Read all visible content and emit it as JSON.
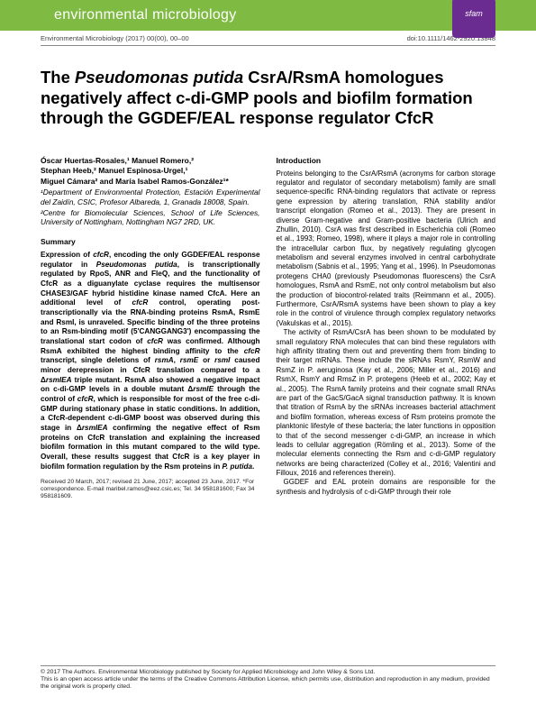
{
  "banner": {
    "journal_brand": "environmental microbiology",
    "badge": "sfam"
  },
  "meta": {
    "citation": "Environmental Microbiology (2017) 00(00), 00–00",
    "doi": "doi:10.1111/1462-2920.13848"
  },
  "title": {
    "pre_italic": "The ",
    "italic1": "Pseudomonas putida",
    "mid": " CsrA/RsmA homologues negatively affect c-di-GMP pools and biofilm formation through the GGDEF/EAL response regulator CfcR"
  },
  "authors": {
    "line1": "Óscar Huertas-Rosales,¹ Manuel Romero,²",
    "line2": "Stephan Heeb,² Manuel Espinosa-Urgel,¹",
    "line3": "Miguel Cámara² and María Isabel Ramos-González¹*"
  },
  "affiliations": {
    "a1": "¹Department of Environmental Protection, Estación Experimental del Zaidín, CSIC, Profesor Albareda, 1, Granada 18008, Spain.",
    "a2": "²Centre for Biomolecular Sciences, School of Life Sciences, University of Nottingham, Nottingham NG7 2RD, UK."
  },
  "summary": {
    "head": "Summary",
    "body_parts": [
      "Expression of ",
      "cfcR",
      ", encoding the only GGDEF/EAL response regulator in ",
      "Pseudomonas putida",
      ", is transcriptionally regulated by RpoS, ANR and FleQ, and the functionality of CfcR as a diguanylate cyclase requires the multisensor CHASE3/GAF hybrid histidine kinase named CfcA. Here an additional level of ",
      "cfcR",
      " control, operating post-transcriptionally via the RNA-binding proteins RsmA, RsmE and RsmI, is unraveled. Specific binding of the three proteins to an Rsm-binding motif (5'CANGGANG3') encompassing the translational start codon of ",
      "cfcR",
      " was confirmed. Although RsmA exhibited the highest binding affinity to the ",
      "cfcR",
      " transcript, single deletions of ",
      "rsmA",
      ", ",
      "rsmE",
      " or ",
      "rsmI",
      " caused minor derepression in CfcR translation compared to a Δ",
      "rsmIEA",
      " triple mutant. RsmA also showed a negative impact on c-di-GMP levels in a double mutant Δ",
      "rsmIE",
      " through the control of ",
      "cfcR",
      ", which is responsible for most of the free c-di-GMP during stationary phase in static conditions. In addition, a CfcR-dependent c-di-GMP boost was observed during this stage in Δ",
      "rsmIEA",
      " confirming the negative effect of Rsm proteins on CfcR translation and explaining the increased biofilm formation in this mutant compared to the wild type. Overall, these results suggest that CfcR is a key player in biofilm formation regulation by the Rsm proteins in ",
      "P. putida",
      "."
    ]
  },
  "intro": {
    "head": "Introduction",
    "p1": "Proteins belonging to the CsrA/RsmA (acronyms for carbon storage regulator and regulator of secondary metabolism) family are small sequence-specific RNA-binding regulators that activate or repress gene expression by altering translation, RNA stability and/or transcript elongation (Romeo et al., 2013). They are present in diverse Gram-negative and Gram-positive bacteria (Ulrich and Zhullin, 2010). CsrA was first described in Escherichia coli (Romeo et al., 1993; Romeo, 1998), where it plays a major role in controlling the intracellular carbon flux, by negatively regulating glycogen metabolism and several enzymes involved in central carbohydrate metabolism (Sabnis et al., 1995; Yang et al., 1996). In Pseudomonas protegens CHA0 (previously Pseudomonas fluorescens) the CsrA homologues, RsmA and RsmE, not only control metabolism but also the production of biocontrol-related traits (Reimmann et al., 2005). Furthermore, CsrA/RsmA systems have been shown to play a key role in the control of virulence through complex regulatory networks (Vakulskas et al., 2015).",
    "p2": "The activity of RsmA/CsrA has been shown to be modulated by small regulatory RNA molecules that can bind these regulators with high affinity titrating them out and preventing them from binding to their target mRNAs. These include the sRNAs RsmY, RsmW and RsmZ in P. aeruginosa (Kay et al., 2006; Miller et al., 2016) and RsmX, RsmY and RmsZ in P. protegens (Heeb et al., 2002; Kay et al., 2005). The RsmA family proteins and their cognate small RNAs are part of the GacS/GacA signal transduction pathway. It is known that titration of RsmA by the sRNAs increases bacterial attachment and biofilm formation, whereas excess of Rsm proteins promote the planktonic lifestyle of these bacteria; the later functions in opposition to that of the second messenger c-di-GMP, an increase in which leads to cellular aggregation (Römling et al., 2013). Some of the molecular elements connecting the Rsm and c-di-GMP regulatory networks are being characterized (Colley et al., 2016; Valentini and Filloux, 2016 and references therein).",
    "p3": "GGDEF and EAL protein domains are responsible for the synthesis and hydrolysis of c-di-GMP through their role"
  },
  "received": "Received 20 March, 2017; revised 21 June, 2017; accepted 23 June, 2017. *For correspondence. E-mail maribel.ramos@eez.csic.es; Tel. 34 958181600; Fax 34 958181609.",
  "footer": {
    "l1": "© 2017 The Authors. Environmental Microbiology published by Society for Applied Microbiology and John Wiley & Sons Ltd.",
    "l2": "This is an open access article under the terms of the Creative Commons Attribution License, which permits use, distribution and reproduction in any medium, provided the original work is properly cited."
  }
}
